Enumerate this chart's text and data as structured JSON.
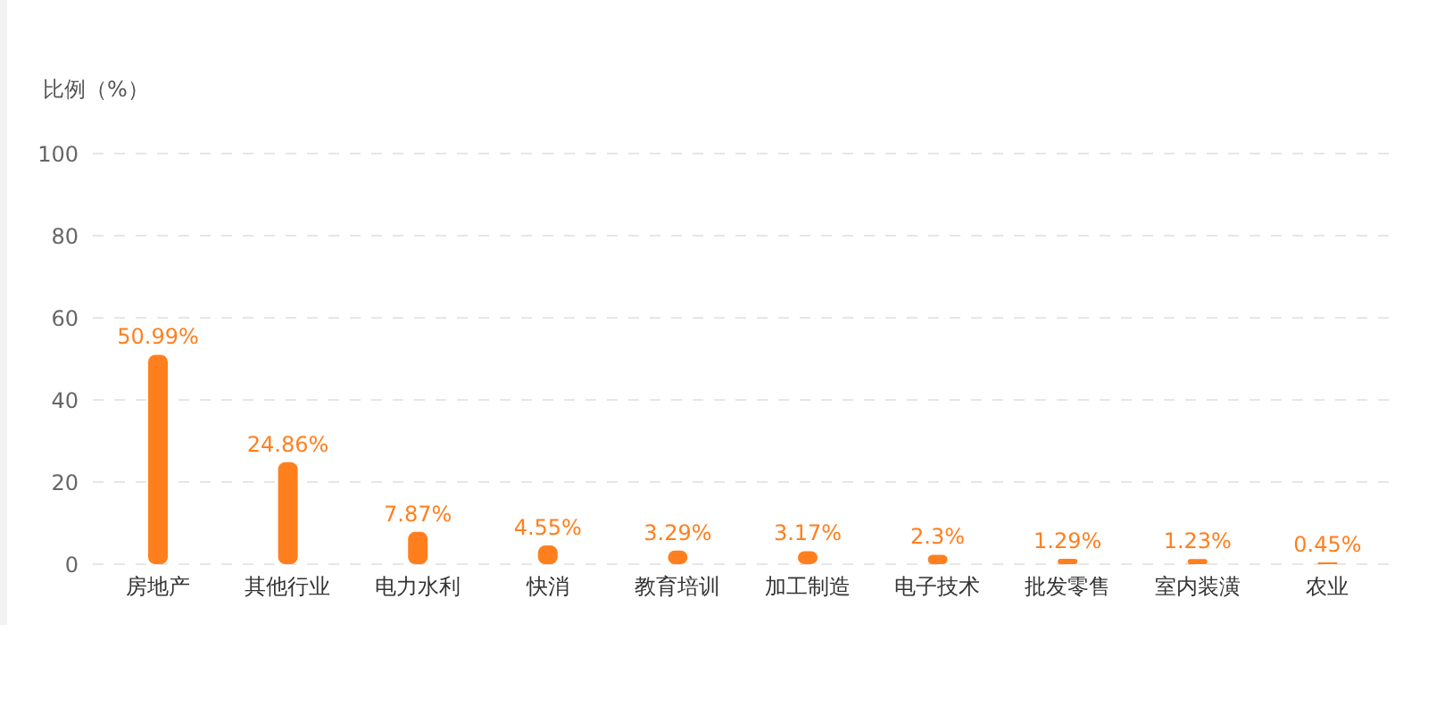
{
  "chart_data": {
    "type": "bar",
    "ylabel": "比例（%）",
    "categories": [
      "房地产",
      "其他行业",
      "电力水利",
      "快消",
      "教育培训",
      "加工制造",
      "电子技术",
      "批发零售",
      "室内装潢",
      "农业"
    ],
    "values": [
      50.99,
      24.86,
      7.87,
      4.55,
      3.29,
      3.17,
      2.3,
      1.29,
      1.23,
      0.45
    ],
    "value_labels": [
      "50.99%",
      "24.86%",
      "7.87%",
      "4.55%",
      "3.29%",
      "3.17%",
      "2.3%",
      "1.29%",
      "1.23%",
      "0.45%"
    ],
    "color": "#ff7f1e",
    "ylim": [
      0,
      100
    ],
    "yticks": [
      0,
      20,
      40,
      60,
      80,
      100
    ],
    "grid": "y"
  }
}
